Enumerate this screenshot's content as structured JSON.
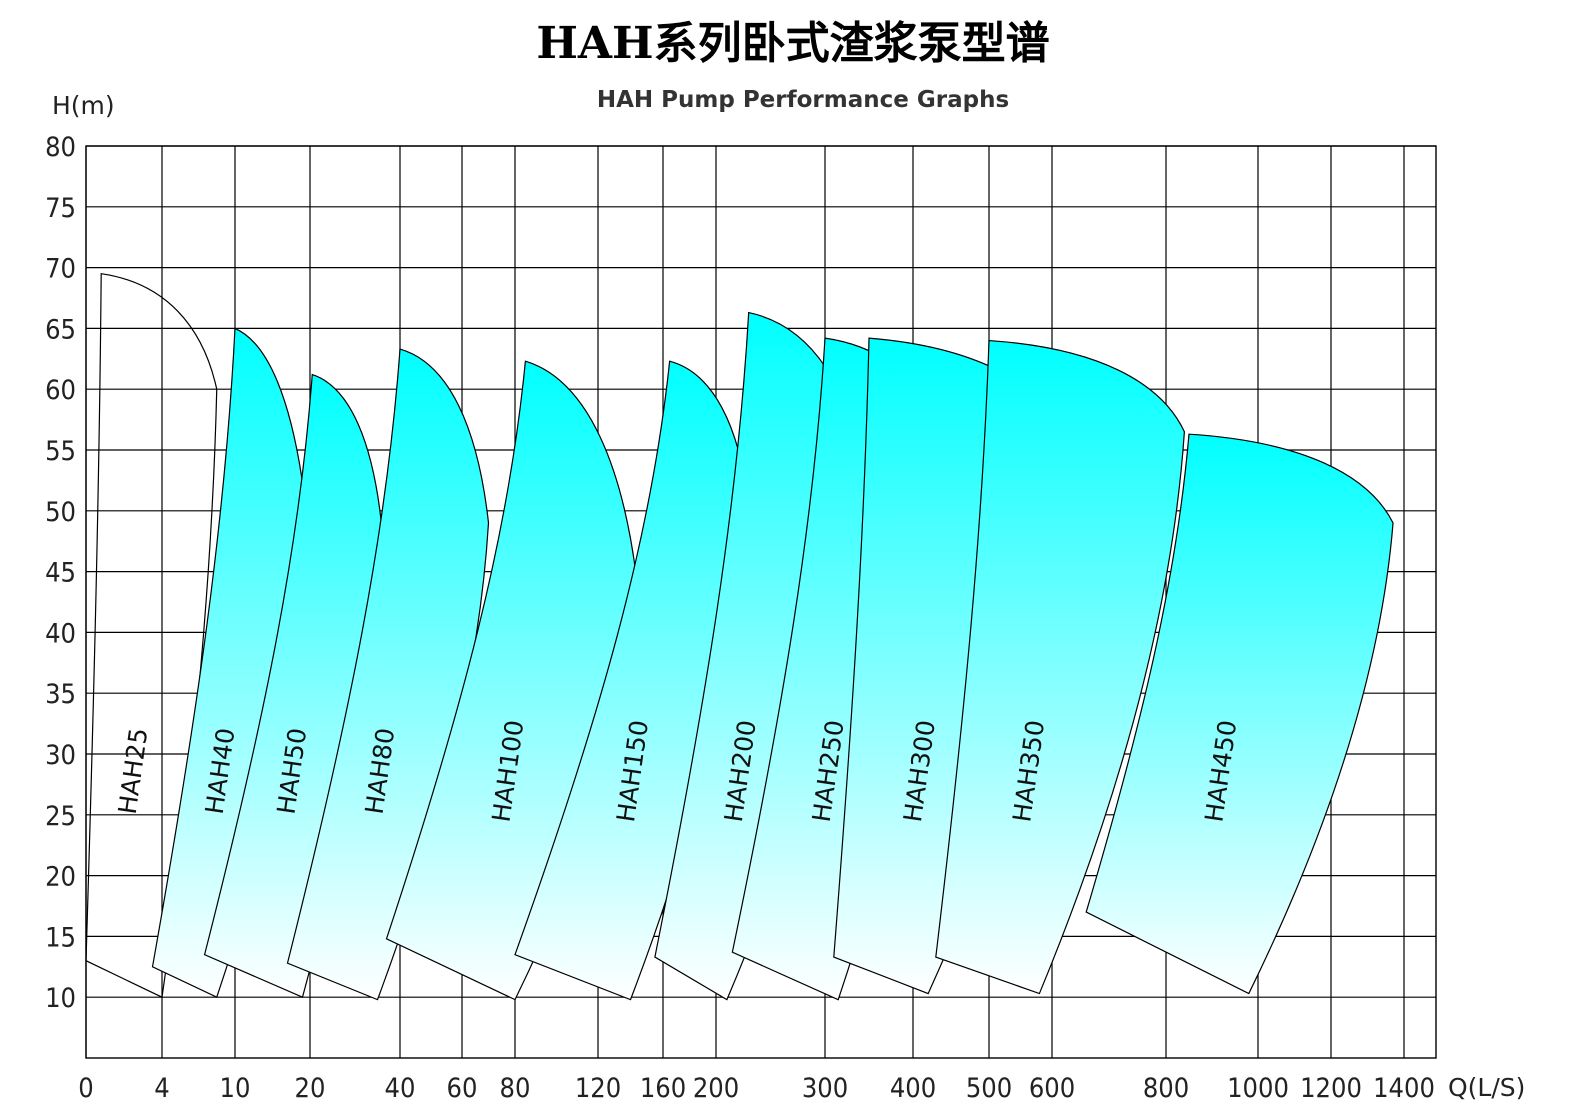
{
  "chart_data": {
    "type": "area",
    "title": "HAH系列卧式渣浆泵型谱",
    "subtitle": "HAH Pump Performance Graphs",
    "ylabel": "H(m)",
    "xlabel": "Q(L/S)",
    "ylim": [
      5,
      80
    ],
    "y_ticks": [
      "10",
      "15",
      "20",
      "25",
      "30",
      "35",
      "40",
      "45",
      "50",
      "55",
      "60",
      "65",
      "70",
      "75",
      "80"
    ],
    "x_ticks": [
      "0",
      "4",
      "10",
      "20",
      "40",
      "60",
      "80",
      "120",
      "160",
      "200",
      "300",
      "400",
      "500",
      "600",
      "800",
      "1000",
      "1200",
      "1400"
    ],
    "x_tick_positions": [
      0,
      4,
      10,
      20,
      40,
      60,
      80,
      120,
      160,
      200,
      300,
      400,
      500,
      600,
      800,
      1000,
      1200,
      1400
    ],
    "grid": true,
    "fill_gradient": [
      "#00ffff",
      "#ffffff"
    ],
    "series": [
      {
        "name": "HAH25",
        "top_left": [
          0.8,
          69.5
        ],
        "top_right": [
          8.5,
          60
        ],
        "bottom_right": [
          4,
          10
        ],
        "bottom_left": [
          0,
          13
        ],
        "outline_only": true
      },
      {
        "name": "HAH40",
        "top_left": [
          10,
          65
        ],
        "top_right": [
          20,
          46.5
        ],
        "bottom_right": [
          8.5,
          10
        ],
        "bottom_left": [
          3.5,
          12.5
        ]
      },
      {
        "name": "HAH50",
        "top_left": [
          20.5,
          61.2
        ],
        "top_right": [
          36,
          48.5
        ],
        "bottom_right": [
          19,
          10
        ],
        "bottom_left": [
          7.5,
          13.5
        ]
      },
      {
        "name": "HAH80",
        "top_left": [
          40,
          63.3
        ],
        "top_right": [
          70,
          49
        ],
        "bottom_right": [
          35,
          9.8
        ],
        "bottom_left": [
          17,
          12.8
        ]
      },
      {
        "name": "HAH100",
        "top_left": [
          85,
          62.3
        ],
        "top_right": [
          145,
          43
        ],
        "bottom_right": [
          80,
          9.8
        ],
        "bottom_left": [
          37,
          14.8
        ]
      },
      {
        "name": "HAH150",
        "top_left": [
          165,
          62.3
        ],
        "top_right": [
          230,
          50.5
        ],
        "bottom_right": [
          140,
          9.8
        ],
        "bottom_left": [
          80,
          13.5
        ]
      },
      {
        "name": "HAH200",
        "top_left": [
          230,
          66.3
        ],
        "top_right": [
          345,
          52.5
        ],
        "bottom_right": [
          210,
          9.8
        ],
        "bottom_left": [
          155,
          13.3
        ]
      },
      {
        "name": "HAH250",
        "top_left": [
          300,
          64.2
        ],
        "top_right": [
          450,
          54
        ],
        "bottom_right": [
          315,
          9.8
        ],
        "bottom_left": [
          215,
          13.7
        ]
      },
      {
        "name": "HAH300",
        "top_left": [
          350,
          64.2
        ],
        "top_right": [
          650,
          54.6
        ],
        "bottom_right": [
          420,
          10.3
        ],
        "bottom_left": [
          310,
          13.3
        ]
      },
      {
        "name": "HAH350",
        "top_left": [
          500,
          64
        ],
        "top_right": [
          840,
          56.5
        ],
        "bottom_right": [
          580,
          10.3
        ],
        "bottom_left": [
          430,
          13.3
        ]
      },
      {
        "name": "HAH450",
        "top_left": [
          850,
          56.3
        ],
        "top_right": [
          1370,
          49
        ],
        "bottom_right": [
          980,
          10.3
        ],
        "bottom_left": [
          660,
          17
        ]
      }
    ]
  }
}
